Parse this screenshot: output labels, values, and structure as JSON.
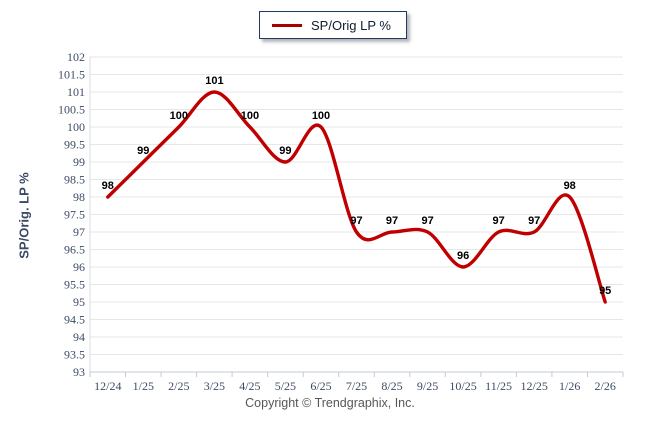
{
  "legend": {
    "label": "SP/Orig LP %",
    "swatch_color": "#a80000"
  },
  "footer": {
    "text": "Copyright © Trendgraphix, Inc."
  },
  "colors": {
    "grid": "#e7e7e7",
    "axis_x": "#c3c9d3",
    "axis_y": "#d9dde3",
    "tick": "#3d4c66",
    "line": "#c00000"
  },
  "chart_data": {
    "type": "line",
    "title": "",
    "xlabel": "",
    "ylabel": "SP/Orig. LP %",
    "categories": [
      "12/24",
      "1/25",
      "2/25",
      "3/25",
      "4/25",
      "5/25",
      "6/25",
      "7/25",
      "8/25",
      "9/25",
      "10/25",
      "11/25",
      "12/25",
      "1/26",
      "2/26"
    ],
    "series": [
      {
        "name": "SP/Orig LP %",
        "color": "#c00000",
        "values": [
          98,
          99,
          100,
          101,
          100,
          99,
          100,
          97,
          97,
          97,
          96,
          97,
          97,
          98,
          95
        ]
      }
    ],
    "ylim": [
      93,
      102
    ],
    "ytick_step": 0.5,
    "grid": true,
    "smooth": true,
    "data_labels": true,
    "legend_position": "top-center"
  }
}
